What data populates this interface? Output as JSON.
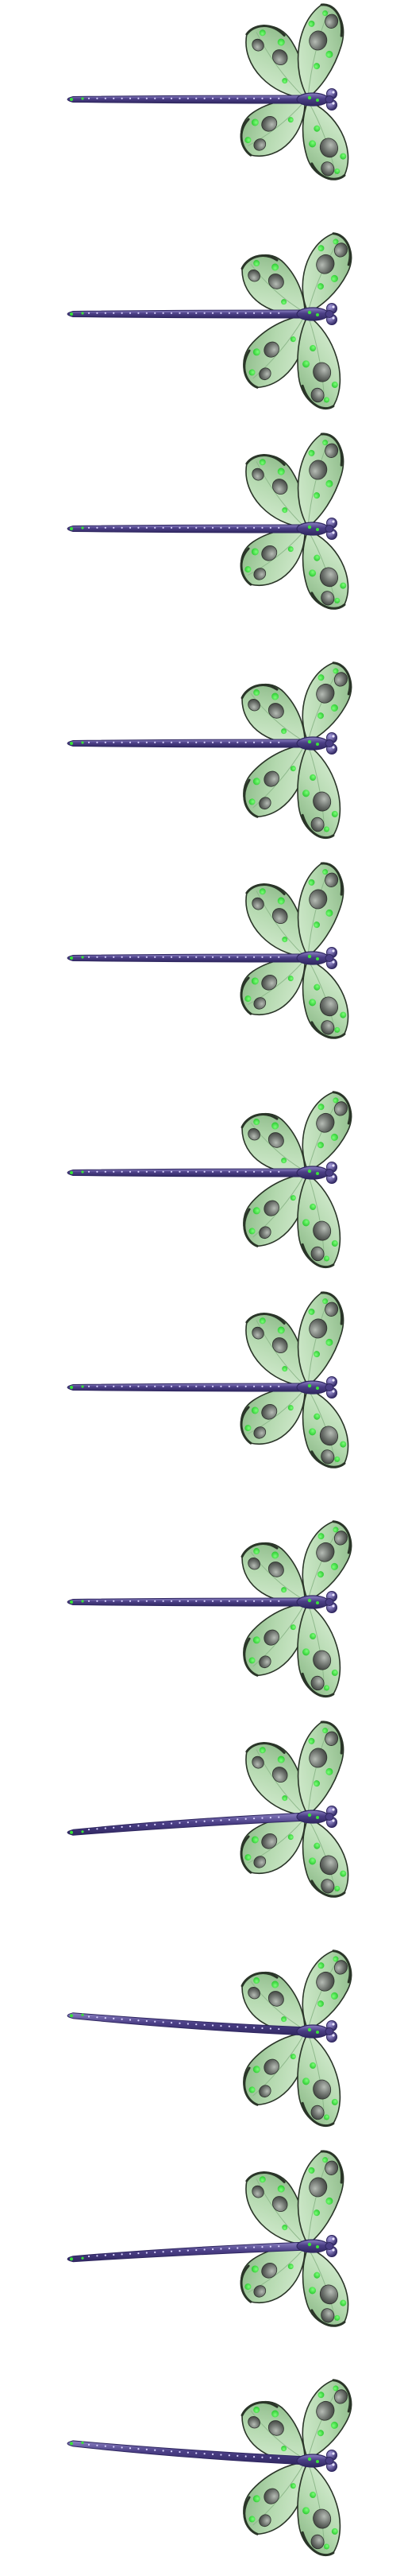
{
  "sprite_sheet": {
    "subject": "dragonfly",
    "orientation": "facing-right",
    "colors": {
      "background": "#ffffff",
      "body": "#4b3f86",
      "body_highlight": "#8d83c4",
      "body_dark": "#2f2760",
      "wing_fill": "#b9ddb4",
      "wing_shade": "#8fb98c",
      "wing_edge": "#2a3528",
      "spot_green": "#38e23a",
      "spot_grey": "#5e6260",
      "spot_grey_light": "#9aa29a"
    },
    "frames": [
      {
        "id": 1,
        "tail_curve": 0,
        "wings": "upper-spread"
      },
      {
        "id": 2,
        "tail_curve": 0,
        "wings": "lower-spread"
      },
      {
        "id": 3,
        "tail_curve": 0,
        "wings": "upper-spread"
      },
      {
        "id": 4,
        "tail_curve": 0,
        "wings": "lower-spread"
      },
      {
        "id": 5,
        "tail_curve": 0,
        "wings": "upper-spread"
      },
      {
        "id": 6,
        "tail_curve": 0,
        "wings": "lower-spread"
      },
      {
        "id": 7,
        "tail_curve": 0,
        "wings": "upper-spread"
      },
      {
        "id": 8,
        "tail_curve": 0,
        "wings": "lower-spread"
      },
      {
        "id": 9,
        "tail_curve": 0.55,
        "wings": "upper-spread"
      },
      {
        "id": 10,
        "tail_curve": -0.55,
        "wings": "lower-spread"
      },
      {
        "id": 11,
        "tail_curve": 0.45,
        "wings": "upper-spread"
      },
      {
        "id": 12,
        "tail_curve": -0.6,
        "wings": "lower-spread"
      }
    ]
  }
}
